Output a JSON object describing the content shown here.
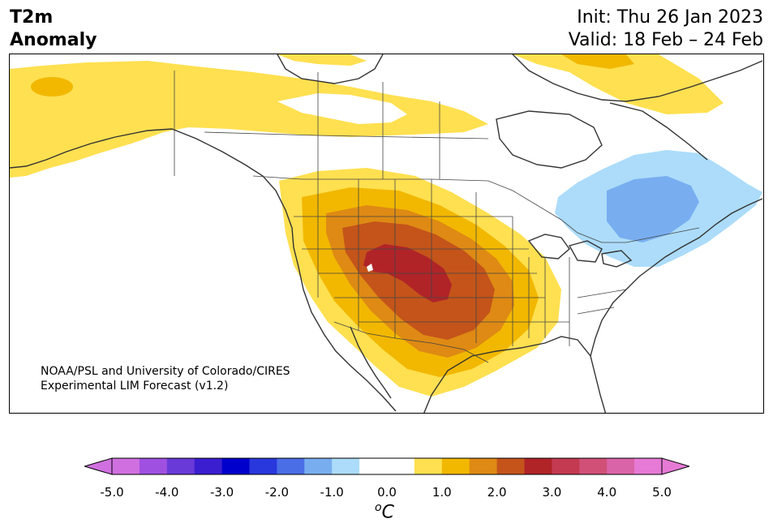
{
  "title": {
    "left_line1": "T2m",
    "left_line2": "Anomaly",
    "init": "Init: Thu 26 Jan 2023",
    "valid": "Valid: 18 Feb – 24 Feb"
  },
  "credit": {
    "line1": "NOAA/PSL and University of Colorado/CIRES",
    "line2": "Experimental LIM Forecast (v1.2)"
  },
  "colorbar": {
    "unit_base": "C",
    "unit_sup": "o",
    "bins": [
      {
        "from": -5.0,
        "to": -4.5,
        "color": "#d070e0"
      },
      {
        "from": -4.5,
        "to": -4.0,
        "color": "#a050e0"
      },
      {
        "from": -4.0,
        "to": -3.5,
        "color": "#6a3ad8"
      },
      {
        "from": -3.5,
        "to": -3.0,
        "color": "#3a1ed0"
      },
      {
        "from": -3.0,
        "to": -2.5,
        "color": "#0000cc"
      },
      {
        "from": -2.5,
        "to": -2.0,
        "color": "#2838dc"
      },
      {
        "from": -2.0,
        "to": -1.5,
        "color": "#4a6ee6"
      },
      {
        "from": -1.5,
        "to": -1.0,
        "color": "#78aef0"
      },
      {
        "from": -1.0,
        "to": -0.5,
        "color": "#acdcfa"
      },
      {
        "from": -0.5,
        "to": 0.0,
        "color": "#ffffff"
      },
      {
        "from": 0.0,
        "to": 0.5,
        "color": "#ffffff"
      },
      {
        "from": 0.5,
        "to": 1.0,
        "color": "#ffe050"
      },
      {
        "from": 1.0,
        "to": 1.5,
        "color": "#f2b800"
      },
      {
        "from": 1.5,
        "to": 2.0,
        "color": "#de8a14"
      },
      {
        "from": 2.0,
        "to": 2.5,
        "color": "#c4541a"
      },
      {
        "from": 2.5,
        "to": 3.0,
        "color": "#b02428"
      },
      {
        "from": 3.0,
        "to": 3.5,
        "color": "#c43a50"
      },
      {
        "from": 3.5,
        "to": 4.0,
        "color": "#d05078"
      },
      {
        "from": 4.0,
        "to": 4.5,
        "color": "#da64a8"
      },
      {
        "from": 4.5,
        "to": 5.0,
        "color": "#e67ad6"
      }
    ],
    "under_color": "#d070e0",
    "over_color": "#e67ad6",
    "tick_labels": [
      "-5.0",
      "-4.0",
      "-3.0",
      "-2.0",
      "-1.0",
      "0.0",
      "1.0",
      "2.0",
      "3.0",
      "4.0",
      "5.0"
    ]
  },
  "anomaly_regions": [
    {
      "region": "Alaska / northern Canada",
      "category": "+0.5 to +1.0"
    },
    {
      "region": "Canadian Arctic Archipelago",
      "category": "+0.5 to +1.0"
    },
    {
      "region": "Western and central United States",
      "category": "+0.5 to +1.0"
    },
    {
      "region": "Great Basin / Rockies / Plains",
      "category": "+1.0 to +2.0"
    },
    {
      "region": "Colorado / Kansas core",
      "category": "+2.0 to +3.0"
    },
    {
      "region": "Quebec / Ontario / New England",
      "category": "-0.5 to -1.5"
    }
  ]
}
